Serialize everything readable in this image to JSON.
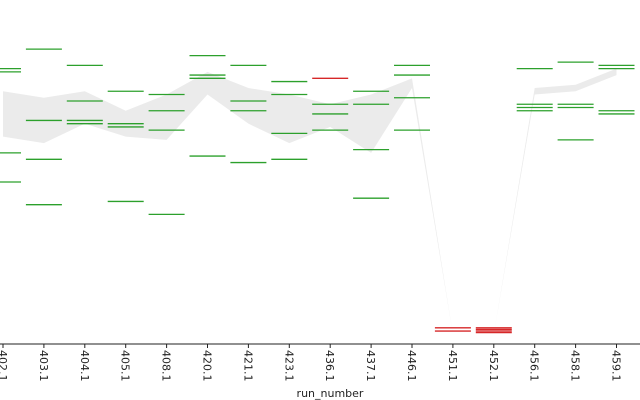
{
  "chart_data": {
    "type": "scatter",
    "xlabel": "run_number",
    "categories": [
      "402.1",
      "403.1",
      "404.1",
      "405.1",
      "408.1",
      "420.1",
      "421.1",
      "423.1",
      "436.1",
      "437.1",
      "446.1",
      "451.1",
      "452.1",
      "456.1",
      "458.1",
      "459.1"
    ],
    "ylim": [
      0,
      100
    ],
    "grid": false,
    "legend": "none",
    "series": [
      {
        "color": "#2ca02c",
        "points": [
          [
            "402.1",
            85
          ],
          [
            "402.1",
            84
          ],
          [
            "402.1",
            59
          ],
          [
            "402.1",
            50
          ],
          [
            "403.1",
            91
          ],
          [
            "403.1",
            69
          ],
          [
            "403.1",
            57
          ],
          [
            "403.1",
            43
          ],
          [
            "404.1",
            86
          ],
          [
            "404.1",
            75
          ],
          [
            "404.1",
            69
          ],
          [
            "404.1",
            68
          ],
          [
            "405.1",
            78
          ],
          [
            "405.1",
            68
          ],
          [
            "405.1",
            67
          ],
          [
            "405.1",
            44
          ],
          [
            "408.1",
            77
          ],
          [
            "408.1",
            72
          ],
          [
            "408.1",
            66
          ],
          [
            "408.1",
            40
          ],
          [
            "420.1",
            89
          ],
          [
            "420.1",
            83
          ],
          [
            "420.1",
            82
          ],
          [
            "420.1",
            58
          ],
          [
            "421.1",
            86
          ],
          [
            "421.1",
            75
          ],
          [
            "421.1",
            72
          ],
          [
            "421.1",
            56
          ],
          [
            "423.1",
            81
          ],
          [
            "423.1",
            77
          ],
          [
            "423.1",
            65
          ],
          [
            "423.1",
            57
          ],
          [
            "436.1",
            74
          ],
          [
            "436.1",
            71
          ],
          [
            "436.1",
            66
          ],
          [
            "437.1",
            78
          ],
          [
            "437.1",
            74
          ],
          [
            "437.1",
            60
          ],
          [
            "437.1",
            45
          ],
          [
            "446.1",
            86
          ],
          [
            "446.1",
            83
          ],
          [
            "446.1",
            76
          ],
          [
            "446.1",
            66
          ],
          [
            "456.1",
            85
          ],
          [
            "456.1",
            74
          ],
          [
            "456.1",
            73
          ],
          [
            "456.1",
            72
          ],
          [
            "458.1",
            87
          ],
          [
            "458.1",
            74
          ],
          [
            "458.1",
            73
          ],
          [
            "458.1",
            63
          ],
          [
            "459.1",
            86
          ],
          [
            "459.1",
            85
          ],
          [
            "459.1",
            72
          ],
          [
            "459.1",
            71
          ]
        ]
      },
      {
        "color": "#d62728",
        "points": [
          [
            "436.1",
            82
          ],
          [
            "451.1",
            5
          ],
          [
            "451.1",
            4
          ],
          [
            "452.1",
            5
          ],
          [
            "452.1",
            4.5
          ],
          [
            "452.1",
            4
          ],
          [
            "452.1",
            3.5
          ]
        ]
      }
    ],
    "band": {
      "color": "#ebebeb",
      "upper": [
        78,
        76,
        78,
        72,
        77,
        84,
        79,
        77,
        74,
        77,
        82,
        3,
        3,
        79,
        80,
        85
      ],
      "lower": [
        64,
        62,
        68,
        64,
        63,
        77,
        68,
        62,
        67,
        59,
        79,
        3,
        3,
        77,
        78,
        83
      ]
    }
  }
}
